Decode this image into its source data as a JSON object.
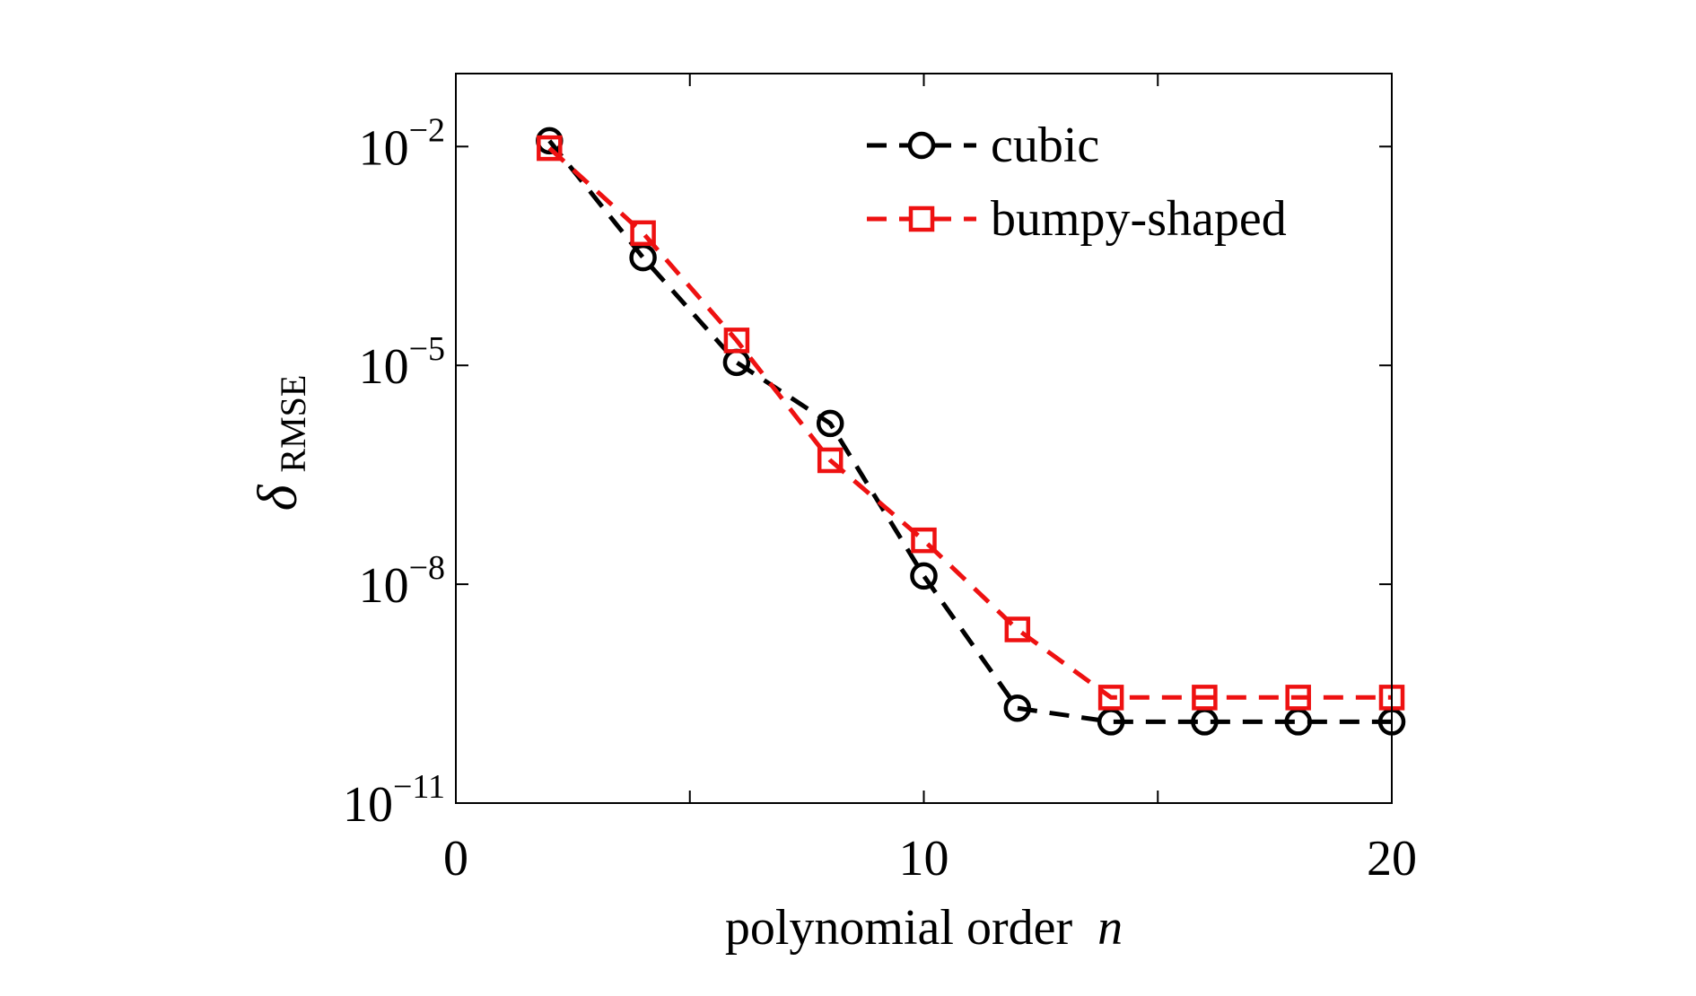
{
  "chart_data": {
    "type": "line",
    "xlabel": "polynomial order",
    "xlabel_var": "n",
    "ylabel_symbol": "δ",
    "ylabel_sub": "RMSE",
    "xlim": [
      0,
      20
    ],
    "ylim_exponents": [
      -11,
      -1
    ],
    "yscale": "log",
    "x_ticks": [
      0,
      10,
      20
    ],
    "y_ticks": [
      {
        "base": "10",
        "exp": "−2",
        "value": 0.01
      },
      {
        "base": "10",
        "exp": "−5",
        "value": 1e-05
      },
      {
        "base": "10",
        "exp": "−8",
        "value": 1e-08
      },
      {
        "base": "10",
        "exp": "−11",
        "value": 1e-11
      }
    ],
    "legend_position": "top-right",
    "series": [
      {
        "name": "cubic",
        "color": "#000000",
        "marker": "circle",
        "line": "dashed",
        "x": [
          2,
          4,
          6,
          8,
          10,
          12,
          14,
          16,
          18,
          20
        ],
        "y": [
          0.012,
          0.0003,
          1.1e-05,
          1.6e-06,
          1.3e-08,
          2e-10,
          1.3e-10,
          1.3e-10,
          1.3e-10,
          1.3e-10
        ]
      },
      {
        "name": "bumpy-shaped",
        "color": "#ee1111",
        "marker": "square",
        "line": "dashed",
        "x": [
          2,
          4,
          6,
          8,
          10,
          12,
          14,
          16,
          18,
          20
        ],
        "y": [
          0.0095,
          0.00065,
          2.2e-05,
          5e-07,
          4e-08,
          2.4e-09,
          2.8e-10,
          2.8e-10,
          2.8e-10,
          2.8e-10
        ]
      }
    ]
  }
}
